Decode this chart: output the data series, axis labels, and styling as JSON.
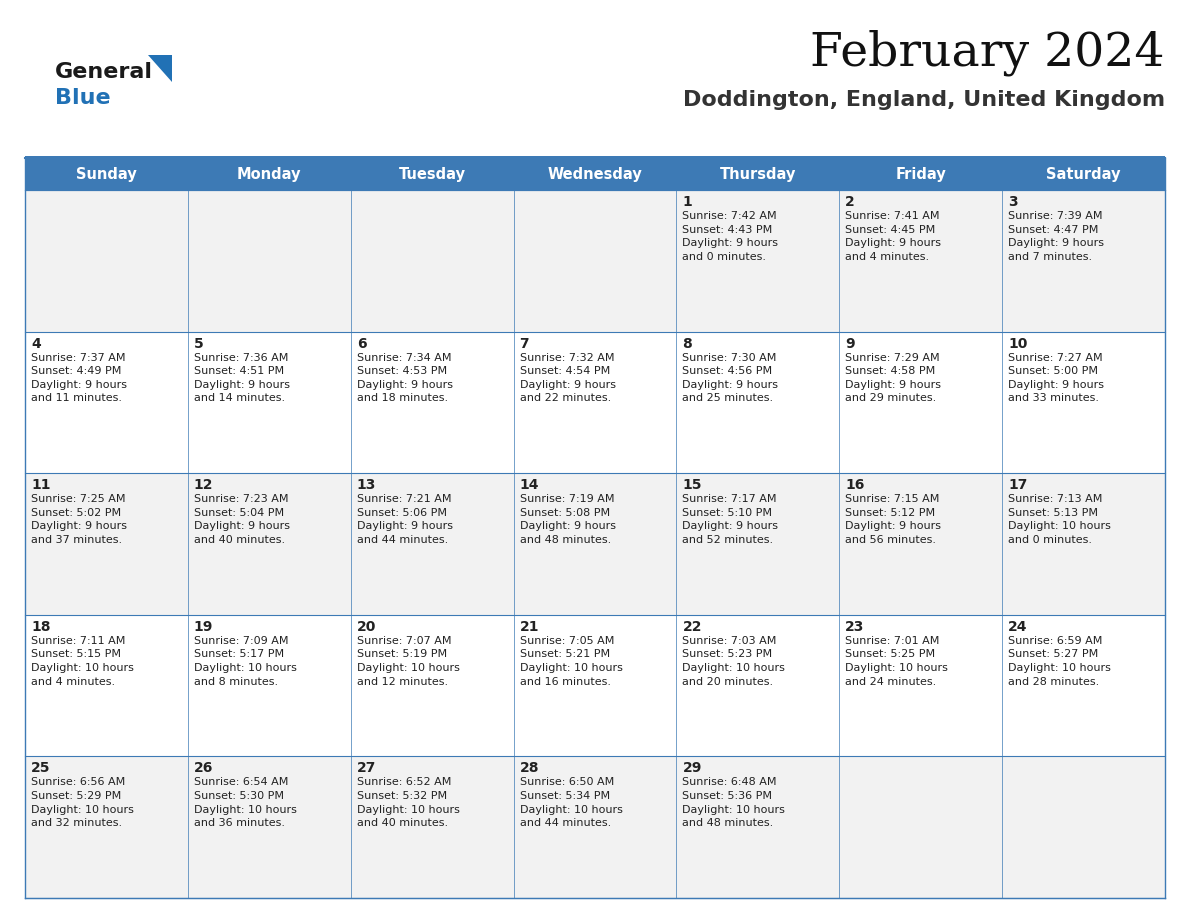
{
  "title": "February 2024",
  "subtitle": "Doddington, England, United Kingdom",
  "header_bg_color": "#3d7ab5",
  "header_text_color": "#ffffff",
  "header_font_size": 10.5,
  "day_names": [
    "Sunday",
    "Monday",
    "Tuesday",
    "Wednesday",
    "Thursday",
    "Friday",
    "Saturday"
  ],
  "title_font_size": 34,
  "subtitle_font_size": 16,
  "cell_text_color": "#222222",
  "day_num_font_size": 10,
  "info_font_size": 8,
  "row_color_odd": "#f2f2f2",
  "row_color_even": "#ffffff",
  "grid_color": "#3d7ab5",
  "logo_general_color": "#1a1a1a",
  "logo_blue_color": "#2171b5",
  "bg_color": "#ffffff",
  "calendar": [
    [
      {
        "day": null,
        "text": ""
      },
      {
        "day": null,
        "text": ""
      },
      {
        "day": null,
        "text": ""
      },
      {
        "day": null,
        "text": ""
      },
      {
        "day": 1,
        "text": "Sunrise: 7:42 AM\nSunset: 4:43 PM\nDaylight: 9 hours\nand 0 minutes."
      },
      {
        "day": 2,
        "text": "Sunrise: 7:41 AM\nSunset: 4:45 PM\nDaylight: 9 hours\nand 4 minutes."
      },
      {
        "day": 3,
        "text": "Sunrise: 7:39 AM\nSunset: 4:47 PM\nDaylight: 9 hours\nand 7 minutes."
      }
    ],
    [
      {
        "day": 4,
        "text": "Sunrise: 7:37 AM\nSunset: 4:49 PM\nDaylight: 9 hours\nand 11 minutes."
      },
      {
        "day": 5,
        "text": "Sunrise: 7:36 AM\nSunset: 4:51 PM\nDaylight: 9 hours\nand 14 minutes."
      },
      {
        "day": 6,
        "text": "Sunrise: 7:34 AM\nSunset: 4:53 PM\nDaylight: 9 hours\nand 18 minutes."
      },
      {
        "day": 7,
        "text": "Sunrise: 7:32 AM\nSunset: 4:54 PM\nDaylight: 9 hours\nand 22 minutes."
      },
      {
        "day": 8,
        "text": "Sunrise: 7:30 AM\nSunset: 4:56 PM\nDaylight: 9 hours\nand 25 minutes."
      },
      {
        "day": 9,
        "text": "Sunrise: 7:29 AM\nSunset: 4:58 PM\nDaylight: 9 hours\nand 29 minutes."
      },
      {
        "day": 10,
        "text": "Sunrise: 7:27 AM\nSunset: 5:00 PM\nDaylight: 9 hours\nand 33 minutes."
      }
    ],
    [
      {
        "day": 11,
        "text": "Sunrise: 7:25 AM\nSunset: 5:02 PM\nDaylight: 9 hours\nand 37 minutes."
      },
      {
        "day": 12,
        "text": "Sunrise: 7:23 AM\nSunset: 5:04 PM\nDaylight: 9 hours\nand 40 minutes."
      },
      {
        "day": 13,
        "text": "Sunrise: 7:21 AM\nSunset: 5:06 PM\nDaylight: 9 hours\nand 44 minutes."
      },
      {
        "day": 14,
        "text": "Sunrise: 7:19 AM\nSunset: 5:08 PM\nDaylight: 9 hours\nand 48 minutes."
      },
      {
        "day": 15,
        "text": "Sunrise: 7:17 AM\nSunset: 5:10 PM\nDaylight: 9 hours\nand 52 minutes."
      },
      {
        "day": 16,
        "text": "Sunrise: 7:15 AM\nSunset: 5:12 PM\nDaylight: 9 hours\nand 56 minutes."
      },
      {
        "day": 17,
        "text": "Sunrise: 7:13 AM\nSunset: 5:13 PM\nDaylight: 10 hours\nand 0 minutes."
      }
    ],
    [
      {
        "day": 18,
        "text": "Sunrise: 7:11 AM\nSunset: 5:15 PM\nDaylight: 10 hours\nand 4 minutes."
      },
      {
        "day": 19,
        "text": "Sunrise: 7:09 AM\nSunset: 5:17 PM\nDaylight: 10 hours\nand 8 minutes."
      },
      {
        "day": 20,
        "text": "Sunrise: 7:07 AM\nSunset: 5:19 PM\nDaylight: 10 hours\nand 12 minutes."
      },
      {
        "day": 21,
        "text": "Sunrise: 7:05 AM\nSunset: 5:21 PM\nDaylight: 10 hours\nand 16 minutes."
      },
      {
        "day": 22,
        "text": "Sunrise: 7:03 AM\nSunset: 5:23 PM\nDaylight: 10 hours\nand 20 minutes."
      },
      {
        "day": 23,
        "text": "Sunrise: 7:01 AM\nSunset: 5:25 PM\nDaylight: 10 hours\nand 24 minutes."
      },
      {
        "day": 24,
        "text": "Sunrise: 6:59 AM\nSunset: 5:27 PM\nDaylight: 10 hours\nand 28 minutes."
      }
    ],
    [
      {
        "day": 25,
        "text": "Sunrise: 6:56 AM\nSunset: 5:29 PM\nDaylight: 10 hours\nand 32 minutes."
      },
      {
        "day": 26,
        "text": "Sunrise: 6:54 AM\nSunset: 5:30 PM\nDaylight: 10 hours\nand 36 minutes."
      },
      {
        "day": 27,
        "text": "Sunrise: 6:52 AM\nSunset: 5:32 PM\nDaylight: 10 hours\nand 40 minutes."
      },
      {
        "day": 28,
        "text": "Sunrise: 6:50 AM\nSunset: 5:34 PM\nDaylight: 10 hours\nand 44 minutes."
      },
      {
        "day": 29,
        "text": "Sunrise: 6:48 AM\nSunset: 5:36 PM\nDaylight: 10 hours\nand 48 minutes."
      },
      {
        "day": null,
        "text": ""
      },
      {
        "day": null,
        "text": ""
      }
    ]
  ]
}
